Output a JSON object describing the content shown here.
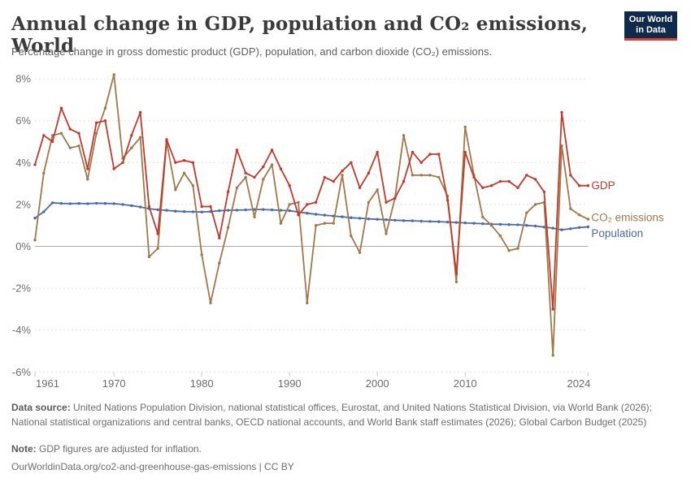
{
  "header": {
    "title": "Annual change in GDP, population and CO₂ emissions, World",
    "subtitle": "Percentage change in gross domestic product (GDP), population, and carbon dioxide (CO₂) emissions.",
    "logo_line1": "Our World",
    "logo_line2": "in Data"
  },
  "chart_data": {
    "type": "line",
    "title": "Annual change in GDP, population and CO₂ emissions, World",
    "xlabel": "",
    "ylabel": "",
    "ylim": [
      -6,
      8
    ],
    "yticks": [
      8,
      6,
      4,
      2,
      0,
      -2,
      -4,
      -6
    ],
    "ytick_suffix": "%",
    "xticks": [
      1961,
      1970,
      1980,
      1990,
      2000,
      2010,
      2024
    ],
    "grid": "dashed-horizontal",
    "zero_line": true,
    "legend_position": "right-of-line-ends",
    "years": [
      1961,
      1962,
      1963,
      1964,
      1965,
      1966,
      1967,
      1968,
      1969,
      1970,
      1971,
      1972,
      1973,
      1974,
      1975,
      1976,
      1977,
      1978,
      1979,
      1980,
      1981,
      1982,
      1983,
      1984,
      1985,
      1986,
      1987,
      1988,
      1989,
      1990,
      1991,
      1992,
      1993,
      1994,
      1995,
      1996,
      1997,
      1998,
      1999,
      2000,
      2001,
      2002,
      2003,
      2004,
      2005,
      2006,
      2007,
      2008,
      2009,
      2010,
      2011,
      2012,
      2013,
      2014,
      2015,
      2016,
      2017,
      2018,
      2019,
      2020,
      2021,
      2022,
      2023,
      2024
    ],
    "series": [
      {
        "name": "Population",
        "color": "#4b6ba5",
        "values": [
          1.35,
          1.65,
          2.08,
          2.05,
          2.04,
          2.05,
          2.04,
          2.06,
          2.05,
          2.04,
          2.0,
          1.94,
          1.88,
          1.8,
          1.75,
          1.72,
          1.68,
          1.66,
          1.65,
          1.64,
          1.66,
          1.7,
          1.72,
          1.73,
          1.74,
          1.76,
          1.76,
          1.74,
          1.72,
          1.7,
          1.64,
          1.58,
          1.53,
          1.49,
          1.45,
          1.41,
          1.37,
          1.34,
          1.31,
          1.29,
          1.27,
          1.25,
          1.23,
          1.22,
          1.2,
          1.19,
          1.18,
          1.16,
          1.14,
          1.12,
          1.1,
          1.08,
          1.06,
          1.05,
          1.04,
          1.03,
          1.0,
          0.97,
          0.92,
          0.87,
          0.79,
          0.84,
          0.9,
          0.93
        ]
      },
      {
        "name": "CO₂ emissions",
        "color": "#a0784a",
        "values": [
          0.3,
          3.5,
          5.3,
          5.4,
          4.7,
          4.8,
          3.2,
          5.4,
          6.6,
          8.2,
          4.2,
          4.7,
          5.2,
          -0.5,
          -0.1,
          5.0,
          2.7,
          3.5,
          2.9,
          -0.4,
          -2.7,
          -0.8,
          0.9,
          2.8,
          3.3,
          1.4,
          3.2,
          3.9,
          1.1,
          2.0,
          2.1,
          -2.7,
          1.0,
          1.1,
          1.1,
          3.4,
          0.5,
          -0.3,
          2.1,
          2.7,
          0.6,
          2.3,
          5.3,
          3.4,
          3.4,
          3.4,
          3.3,
          2.4,
          -1.7,
          5.7,
          3.4,
          1.4,
          1.0,
          0.5,
          -0.2,
          -0.1,
          1.6,
          2.0,
          2.1,
          -5.2,
          4.8,
          1.8,
          1.5,
          1.3
        ]
      },
      {
        "name": "GDP",
        "color": "#c3392b",
        "values": [
          3.9,
          5.3,
          5.0,
          6.6,
          5.6,
          5.4,
          3.7,
          5.9,
          6.0,
          3.7,
          4.0,
          5.3,
          6.4,
          1.9,
          0.6,
          5.1,
          4.0,
          4.1,
          4.0,
          1.9,
          1.9,
          0.4,
          2.6,
          4.6,
          3.5,
          3.3,
          3.8,
          4.6,
          3.7,
          2.9,
          1.5,
          2.0,
          2.1,
          3.3,
          3.1,
          3.6,
          4.0,
          2.8,
          3.5,
          4.5,
          2.1,
          2.3,
          3.1,
          4.5,
          4.0,
          4.4,
          4.4,
          2.2,
          -1.3,
          4.5,
          3.3,
          2.8,
          2.9,
          3.1,
          3.1,
          2.8,
          3.4,
          3.2,
          2.6,
          -3.0,
          6.4,
          3.4,
          2.9,
          2.9
        ]
      }
    ]
  },
  "footer": {
    "datasource_label": "Data source:",
    "datasource_text": " United Nations Population Division, national statistical offices, Eurostat, and United Nations Statistical Division, via World Bank (2026); National statistical organizations and central banks, OECD national accounts, and World Bank staff estimates (2026); Global Carbon Budget (2025)",
    "note_label": "Note:",
    "note_text": " GDP figures are adjusted for inflation.",
    "link_text": "OurWorldinData.org/co2-and-greenhouse-gas-emissions | CC BY"
  }
}
